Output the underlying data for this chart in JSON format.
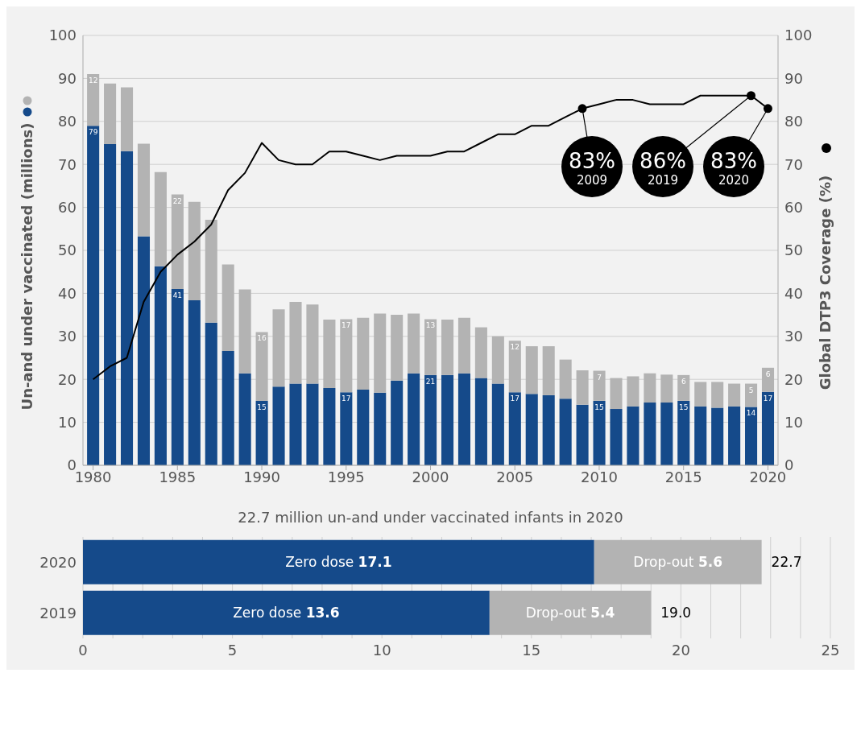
{
  "chart_data": [
    {
      "type": "bar",
      "stacked": true,
      "ylabel": "Un-and under vaccinated (millions)",
      "y2label": "Global DTP3 Coverage (%)",
      "x": [
        1980,
        1981,
        1982,
        1983,
        1984,
        1985,
        1986,
        1987,
        1988,
        1989,
        1990,
        1991,
        1992,
        1993,
        1994,
        1995,
        1996,
        1997,
        1998,
        1999,
        2000,
        2001,
        2002,
        2003,
        2004,
        2005,
        2006,
        2007,
        2008,
        2009,
        2010,
        2011,
        2012,
        2013,
        2014,
        2015,
        2016,
        2017,
        2018,
        2019,
        2020
      ],
      "xlim": [
        1979.4,
        2020.6
      ],
      "xticks": [
        1980,
        1985,
        1990,
        1995,
        2000,
        2005,
        2010,
        2015,
        2020
      ],
      "ylim": [
        0,
        100
      ],
      "yticks": [
        0,
        10,
        20,
        30,
        40,
        50,
        60,
        70,
        80,
        90,
        100
      ],
      "y2lim": [
        0,
        100
      ],
      "y2ticks": [
        0,
        10,
        20,
        30,
        40,
        50,
        60,
        70,
        80,
        90,
        100
      ],
      "grid": "y",
      "series": [
        {
          "type": "bar",
          "color": "#154a8a",
          "values": [
            79,
            74.7,
            73.1,
            53.3,
            46.3,
            41,
            38.4,
            33.2,
            26.6,
            21.4,
            15,
            18.3,
            19,
            19,
            18,
            17,
            17.6,
            16.9,
            19.7,
            21.4,
            21,
            21,
            21.4,
            20.3,
            19,
            17,
            16.6,
            16.3,
            15.5,
            14.1,
            15,
            13.1,
            13.7,
            14.6,
            14.6,
            15,
            13.7,
            13.4,
            13.7,
            13.6,
            17.1
          ],
          "value_labels": [
            "79",
            null,
            null,
            null,
            null,
            "41",
            null,
            null,
            null,
            null,
            "15",
            null,
            null,
            null,
            null,
            "17",
            null,
            null,
            null,
            null,
            "21",
            null,
            null,
            null,
            null,
            "17",
            null,
            null,
            null,
            null,
            "15",
            null,
            null,
            null,
            null,
            "15",
            null,
            null,
            null,
            "14",
            "17"
          ]
        },
        {
          "type": "bar",
          "color": "#b3b3b3",
          "values": [
            12,
            14.1,
            14.8,
            21.5,
            21.9,
            22,
            22.9,
            23.9,
            20.1,
            19.5,
            16,
            18,
            19,
            18.4,
            15.9,
            17,
            16.7,
            18.4,
            15.3,
            13.9,
            13,
            12.9,
            12.9,
            11.8,
            11,
            12,
            11.1,
            11.4,
            9.1,
            8,
            7,
            7.2,
            7,
            6.8,
            6.5,
            6,
            5.7,
            6,
            5.3,
            5.4,
            5.6
          ],
          "value_labels": [
            "12",
            null,
            null,
            null,
            null,
            "22",
            null,
            null,
            null,
            null,
            "16",
            null,
            null,
            null,
            null,
            "17",
            null,
            null,
            null,
            null,
            "13",
            null,
            null,
            null,
            null,
            "12",
            null,
            null,
            null,
            null,
            "7",
            null,
            null,
            null,
            null,
            "6",
            null,
            null,
            null,
            "5",
            "6"
          ]
        },
        {
          "type": "line",
          "axis": "y2",
          "color": "#000000",
          "line_style": "solid",
          "values": [
            20,
            23,
            25,
            38,
            45,
            49,
            52,
            56,
            64,
            68,
            75,
            71,
            70,
            70,
            73,
            73,
            72,
            71,
            72,
            72,
            72,
            73,
            73,
            75,
            77,
            77,
            79,
            79,
            81,
            83,
            84,
            85,
            85,
            84,
            84,
            84,
            86,
            86,
            86,
            86,
            83
          ]
        }
      ],
      "annotations": [
        {
          "text": "83%\n2009",
          "x": 2009,
          "y": 83
        },
        {
          "text": "86%\n2019",
          "x": 2019,
          "y": 86
        },
        {
          "text": "83%\n2020",
          "x": 2020,
          "y": 83
        }
      ]
    },
    {
      "type": "bar",
      "stacked": true,
      "orientation": "horizontal",
      "title": "22.7 million un-and under vaccinated infants in 2020",
      "categories": [
        "2020",
        "2019"
      ],
      "xlim": [
        0,
        25
      ],
      "xticks": [
        0,
        {
          "value": 1,
          "label": null
        },
        {
          "value": 2,
          "label": null
        },
        {
          "value": 3,
          "label": null
        },
        {
          "value": 4,
          "label": null
        },
        5,
        {
          "value": 6,
          "label": null
        },
        {
          "value": 7,
          "label": null
        },
        {
          "value": 8,
          "label": null
        },
        {
          "value": 9,
          "label": null
        },
        10,
        {
          "value": 11,
          "label": null
        },
        {
          "value": 12,
          "label": null
        },
        {
          "value": 13,
          "label": null
        },
        {
          "value": 14,
          "label": null
        },
        15,
        {
          "value": 16,
          "label": null
        },
        {
          "value": 17,
          "label": null
        },
        {
          "value": 18,
          "label": null
        },
        {
          "value": 19,
          "label": null
        },
        20,
        {
          "value": 21,
          "label": null
        },
        {
          "value": 22,
          "label": null
        },
        {
          "value": 23,
          "label": null
        },
        {
          "value": 24,
          "label": null
        },
        25
      ],
      "grid": "x",
      "data_labels": true,
      "series": [
        {
          "name": "Zero dose",
          "color": "#154a8a",
          "values": [
            17.1,
            13.6
          ]
        },
        {
          "name": "Drop-out",
          "color": "#b3b3b3",
          "values": [
            5.6,
            5.4
          ]
        }
      ],
      "totals": [
        "22.7",
        "19.0"
      ]
    }
  ]
}
